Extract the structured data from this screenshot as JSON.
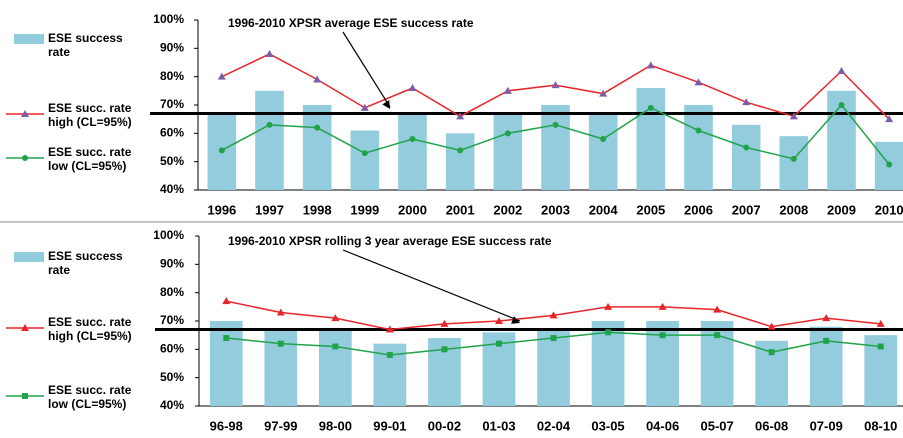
{
  "chart_data": [
    {
      "type": "bar",
      "categories": [
        "1996",
        "1997",
        "1998",
        "1999",
        "2000",
        "2001",
        "2002",
        "2003",
        "2004",
        "2005",
        "2006",
        "2007",
        "2008",
        "2009",
        "2010"
      ],
      "series": [
        {
          "name": "ESE success rate",
          "type": "bar",
          "color": "#93cddd",
          "values": [
            67,
            75,
            70,
            61,
            67,
            60,
            67,
            70,
            67,
            76,
            70,
            63,
            59,
            75,
            57
          ]
        },
        {
          "name": "ESE succ. rate high (CL=95%)",
          "type": "line",
          "color": "#e8262a",
          "marker": "triangle",
          "marker_color": "#7b5ea7",
          "values": [
            80,
            88,
            79,
            69,
            76,
            66,
            75,
            77,
            74,
            84,
            78,
            71,
            66,
            82,
            65
          ]
        },
        {
          "name": "ESE succ. rate low (CL=95%)",
          "type": "line",
          "color": "#20a34a",
          "marker": "circle",
          "marker_color": "#20a34a",
          "values": [
            54,
            63,
            62,
            53,
            58,
            54,
            60,
            63,
            58,
            69,
            61,
            55,
            51,
            70,
            49
          ]
        }
      ],
      "reference_line": 67,
      "annotation": "1996-2010 XPSR average  ESE success rate",
      "ylim": [
        40,
        100
      ],
      "yticks": [
        {
          "value": 40,
          "label": "40%"
        },
        {
          "value": 50,
          "label": "50%"
        },
        {
          "value": 60,
          "label": "60%"
        },
        {
          "value": 70,
          "label": "70%"
        },
        {
          "value": 80,
          "label": "80%"
        },
        {
          "value": 90,
          "label": "90%"
        },
        {
          "value": 100,
          "label": "100%"
        }
      ]
    },
    {
      "type": "bar",
      "categories": [
        "96-98",
        "97-99",
        "98-00",
        "99-01",
        "00-02",
        "01-03",
        "02-04",
        "03-05",
        "04-06",
        "05-07",
        "06-08",
        "07-09",
        "08-10"
      ],
      "series": [
        {
          "name": "ESE success rate",
          "type": "bar",
          "color": "#93cddd",
          "values": [
            70,
            67,
            67,
            62,
            64,
            66,
            67,
            70,
            70,
            70,
            63,
            68,
            65
          ]
        },
        {
          "name": "ESE succ. rate high (CL=95%)",
          "type": "line",
          "color": "#e8262a",
          "marker": "triangle",
          "marker_color": "#e8262a",
          "values": [
            77,
            73,
            71,
            67,
            69,
            70,
            72,
            75,
            75,
            74,
            68,
            71,
            69
          ]
        },
        {
          "name": "ESE succ. rate low (CL=95%)",
          "type": "line",
          "color": "#20a34a",
          "marker": "square",
          "marker_color": "#20a34a",
          "values": [
            64,
            62,
            61,
            58,
            60,
            62,
            64,
            66,
            65,
            65,
            59,
            63,
            61
          ]
        }
      ],
      "reference_line": 67,
      "annotation": "1996-2010 XPSR rolling 3 year average ESE success rate",
      "ylim": [
        40,
        100
      ],
      "yticks": [
        {
          "value": 40,
          "label": "40%"
        },
        {
          "value": 50,
          "label": "50%"
        },
        {
          "value": 60,
          "label": "60%"
        },
        {
          "value": 70,
          "label": "70%"
        },
        {
          "value": 80,
          "label": "80%"
        },
        {
          "value": 90,
          "label": "90%"
        },
        {
          "value": 100,
          "label": "100%"
        }
      ]
    }
  ]
}
